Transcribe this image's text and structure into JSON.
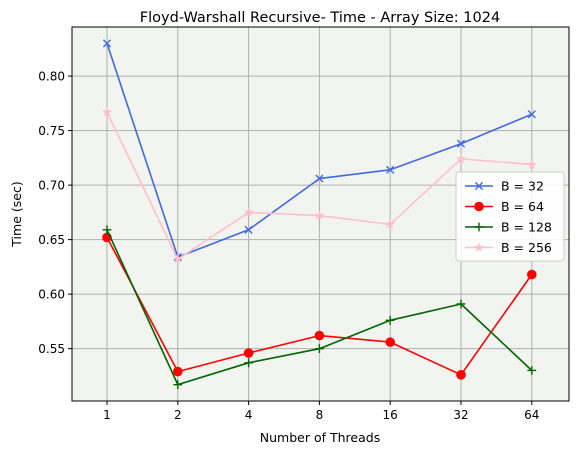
{
  "chart_data": {
    "type": "line",
    "title": "Floyd-Warshall Recursive- Time - Array Size: 1024",
    "xlabel": "Number of Threads",
    "ylabel": "Time (sec)",
    "categories": [
      "1",
      "2",
      "4",
      "8",
      "16",
      "32",
      "64"
    ],
    "ylim": [
      0.502,
      0.845
    ],
    "yticks": [
      0.55,
      0.6,
      0.65,
      0.7,
      0.75,
      0.8
    ],
    "ytick_labels": [
      "0.55",
      "0.60",
      "0.65",
      "0.70",
      "0.75",
      "0.80"
    ],
    "grid": true,
    "legend_position": "center-right",
    "plot_background": "#f2f4ef",
    "grid_color": "#b0b0b0",
    "series": [
      {
        "name": "B = 32",
        "marker": "x",
        "color": "#4169e1",
        "values": [
          0.83,
          0.634,
          0.659,
          0.706,
          0.714,
          0.738,
          0.765
        ]
      },
      {
        "name": "B = 64",
        "marker": "circle",
        "color": "#ff0000",
        "values": [
          0.652,
          0.529,
          0.546,
          0.562,
          0.556,
          0.526,
          0.618
        ]
      },
      {
        "name": "B = 128",
        "marker": "plus",
        "color": "#006400",
        "values": [
          0.659,
          0.517,
          0.537,
          0.55,
          0.576,
          0.591,
          0.53
        ]
      },
      {
        "name": "B = 256",
        "marker": "star",
        "color": "#ffc0cb",
        "values": [
          0.767,
          0.632,
          0.675,
          0.672,
          0.664,
          0.724,
          0.719
        ]
      }
    ]
  }
}
